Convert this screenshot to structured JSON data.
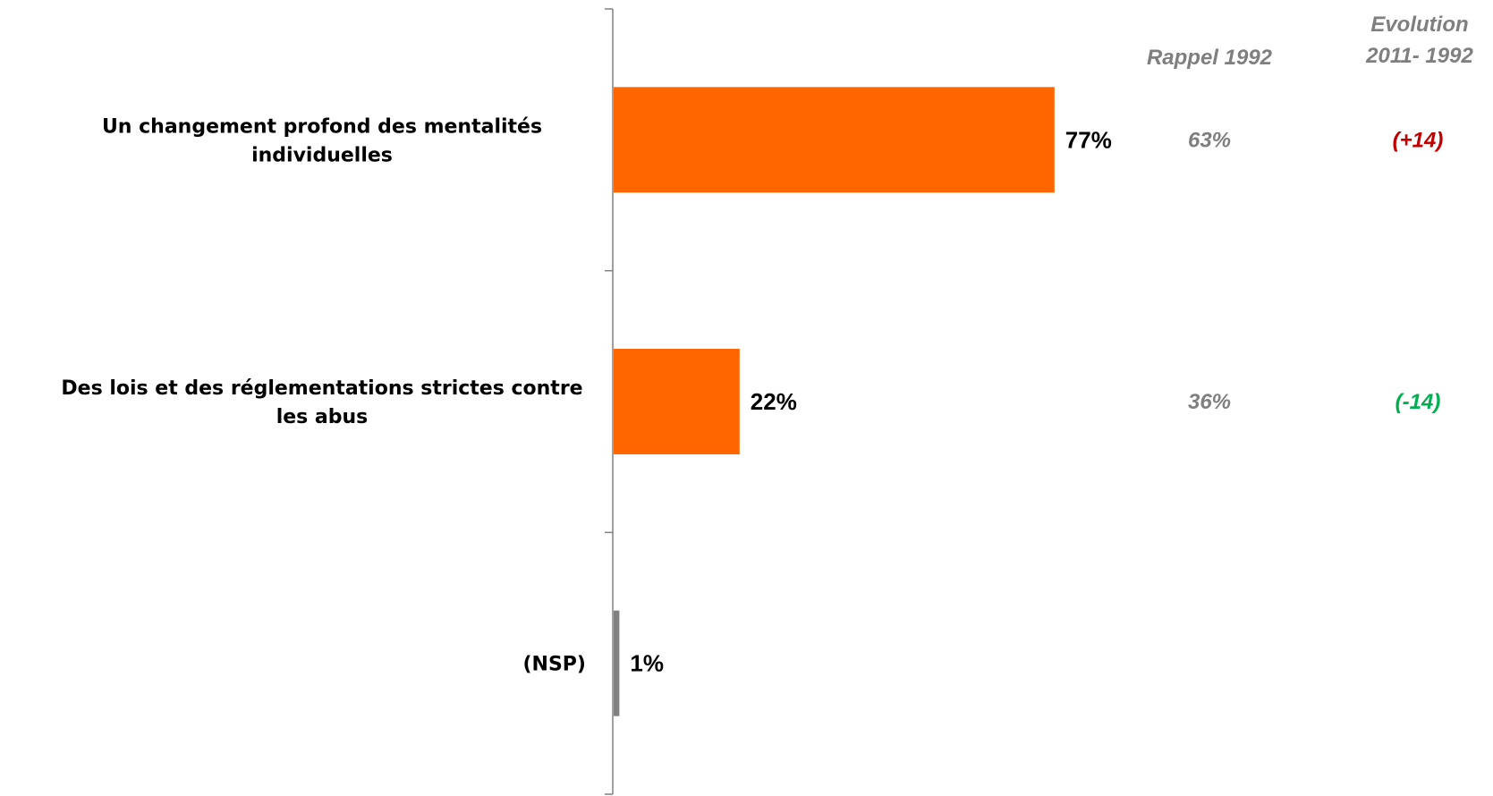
{
  "chart_data": {
    "type": "bar",
    "orientation": "horizontal",
    "categories": [
      "Un changement profond des mentalités individuelles",
      "Des lois et des réglementations strictes contre les abus",
      "(NSP)"
    ],
    "category_label_lines": [
      [
        "Un changement profond des mentalités",
        "individuelles"
      ],
      [
        "Des lois et des réglementations strictes contre",
        "les abus"
      ],
      [
        "(NSP)"
      ]
    ],
    "values": [
      77,
      22,
      1
    ],
    "value_labels": [
      "77%",
      "22%",
      "1%"
    ],
    "bar_colors": [
      "#ff6600",
      "#ff6600",
      "#808080"
    ],
    "xlim": [
      0,
      100
    ],
    "grid": false,
    "extra_columns": {
      "rappel": {
        "header": "Rappel 1992",
        "values": [
          "63%",
          "36%",
          ""
        ]
      },
      "evolution": {
        "header_lines": [
          "Evolution",
          "2011- 1992"
        ],
        "values": [
          "(+14)",
          "(-14)",
          ""
        ],
        "colors": [
          "#c00000",
          "#00b050",
          ""
        ]
      }
    }
  }
}
